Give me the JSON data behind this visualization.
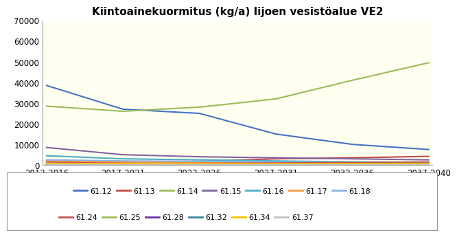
{
  "title": "Kiintoainekuormitus (kg/a) Iijoen vesistöalue VE2",
  "x_labels": [
    "2012-2016",
    "2017-2021",
    "2022-2026",
    "2027-2031",
    "2032-2036",
    "2037-2040"
  ],
  "ylim": [
    0,
    70000
  ],
  "yticks": [
    0,
    10000,
    20000,
    30000,
    40000,
    50000,
    60000,
    70000
  ],
  "plot_bg": "#FFFFF0",
  "fig_bg": "#FFFFFF",
  "series": [
    {
      "label": "61.12",
      "color": "#4472C4",
      "values": [
        38500,
        27000,
        25000,
        15000,
        10000,
        7500
      ]
    },
    {
      "label": "61.13",
      "color": "#BE4B48",
      "values": [
        1500,
        1200,
        1800,
        3000,
        3500,
        4200
      ]
    },
    {
      "label": "61.14",
      "color": "#9BBB59",
      "values": [
        28500,
        26000,
        28000,
        32000,
        41000,
        49500
      ]
    },
    {
      "label": "61.15",
      "color": "#8064A2",
      "values": [
        8500,
        5000,
        4000,
        3500,
        3000,
        2500
      ]
    },
    {
      "label": "61.16",
      "color": "#4BACC6",
      "values": [
        4500,
        3000,
        2500,
        2000,
        1500,
        1200
      ]
    },
    {
      "label": "61.17",
      "color": "#F79646",
      "values": [
        2000,
        1500,
        1200,
        1000,
        800,
        700
      ]
    },
    {
      "label": "61.18",
      "color": "#8DB4E2",
      "values": [
        2500,
        2000,
        1800,
        1500,
        1200,
        1000
      ]
    },
    {
      "label": "61.24",
      "color": "#C0504D",
      "values": [
        500,
        600,
        800,
        1000,
        1200,
        1400
      ]
    },
    {
      "label": "61.25",
      "color": "#9BBB59",
      "values": [
        300,
        400,
        500,
        600,
        700,
        800
      ]
    },
    {
      "label": "61.28",
      "color": "#7030A0",
      "values": [
        400,
        350,
        300,
        280,
        250,
        220
      ]
    },
    {
      "label": "61.32",
      "color": "#31849B",
      "values": [
        600,
        500,
        450,
        400,
        350,
        300
      ]
    },
    {
      "label": "61,34",
      "color": "#FFC000",
      "values": [
        800,
        700,
        650,
        600,
        550,
        500
      ]
    },
    {
      "label": "61.37",
      "color": "#C0C0C0",
      "values": [
        200,
        180,
        160,
        140,
        120,
        100
      ]
    }
  ],
  "legend_row1": [
    0,
    1,
    2,
    3,
    4,
    5,
    6
  ],
  "legend_row2": [
    7,
    8,
    9,
    10,
    11,
    12
  ]
}
